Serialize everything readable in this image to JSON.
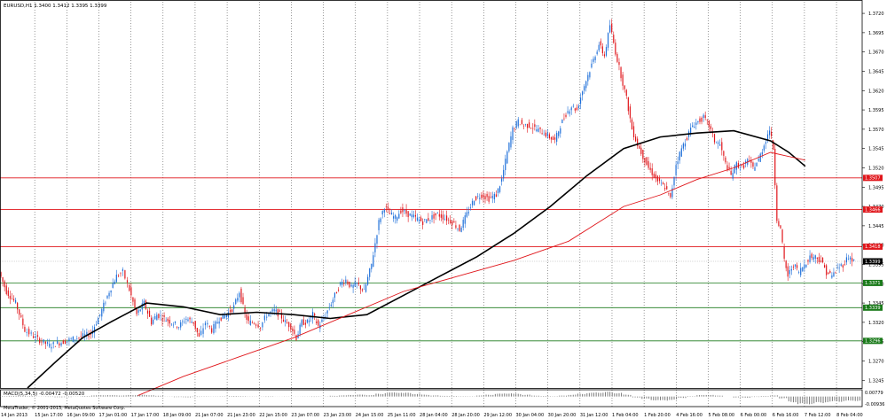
{
  "window": {
    "title": "EURUSD,H1  1.3400  1.3412  1.3395  1.3399"
  },
  "colors": {
    "background": "#ffffff",
    "bull_candle": "#1e6fd9",
    "bear_candle": "#e0161b",
    "ma_fast": "#000000",
    "ma_slow": "#e0161b",
    "resistance": "#e0161b",
    "support": "#1a7a1a",
    "grid": "#555555"
  },
  "icons": {
    "chart_type": "candlestick-chart-icon"
  },
  "chart_data": [
    {
      "type": "candlestick",
      "title": "EURUSD,H1  1.3400  1.3412  1.3395  1.3399",
      "symbol": "EURUSD",
      "timeframe": "H1",
      "ohlc_readout": [
        1.34,
        1.3412,
        1.3395,
        1.3399
      ],
      "ylim": [
        1.3235,
        1.3735
      ],
      "y_ticks": [
        "1.3720",
        "1.3695",
        "1.3670",
        "1.3645",
        "1.3620",
        "1.3595",
        "1.3570",
        "1.3545",
        "1.3520",
        "1.3495",
        "1.3470",
        "1.3445",
        "1.3420",
        "1.3395",
        "1.3370",
        "1.3345",
        "1.3320",
        "1.3295",
        "1.3270",
        "1.3245"
      ],
      "x_ticks": [
        "14 Jan 2013",
        "15 Jan 17:00",
        "16 Jan 09:00",
        "17 Jan 01:00",
        "17 Jan 17:00",
        "18 Jan 09:00",
        "21 Jan 07:00",
        "21 Jan 23:00",
        "22 Jan 15:00",
        "23 Jan 07:00",
        "23 Jan 23:00",
        "24 Jan 15:00",
        "25 Jan 11:00",
        "28 Jan 04:00",
        "28 Jan 20:00",
        "29 Jan 12:00",
        "30 Jan 04:00",
        "30 Jan 20:00",
        "31 Jan 12:00",
        "1 Feb 04:00",
        "1 Feb 20:00",
        "4 Feb 16:00",
        "5 Feb 08:00",
        "6 Feb 00:00",
        "6 Feb 16:00",
        "7 Feb 12:00",
        "8 Feb 04:00"
      ],
      "price_path": [
        [
          0,
          1.3385
        ],
        [
          8,
          1.336
        ],
        [
          18,
          1.3345
        ],
        [
          28,
          1.331
        ],
        [
          40,
          1.33
        ],
        [
          55,
          1.329
        ],
        [
          70,
          1.3295
        ],
        [
          85,
          1.33
        ],
        [
          100,
          1.3305
        ],
        [
          110,
          1.333
        ],
        [
          120,
          1.336
        ],
        [
          128,
          1.338
        ],
        [
          135,
          1.3385
        ],
        [
          140,
          1.337
        ],
        [
          150,
          1.333
        ],
        [
          158,
          1.3345
        ],
        [
          166,
          1.332
        ],
        [
          172,
          1.333
        ],
        [
          180,
          1.3325
        ],
        [
          188,
          1.332
        ],
        [
          196,
          1.3315
        ],
        [
          204,
          1.3325
        ],
        [
          212,
          1.332
        ],
        [
          218,
          1.33
        ],
        [
          225,
          1.332
        ],
        [
          232,
          1.331
        ],
        [
          240,
          1.3325
        ],
        [
          248,
          1.333
        ],
        [
          256,
          1.334
        ],
        [
          262,
          1.336
        ],
        [
          268,
          1.333
        ],
        [
          272,
          1.332
        ],
        [
          278,
          1.332
        ],
        [
          285,
          1.3315
        ],
        [
          292,
          1.333
        ],
        [
          300,
          1.3335
        ],
        [
          306,
          1.333
        ],
        [
          312,
          1.332
        ],
        [
          318,
          1.3315
        ],
        [
          324,
          1.33
        ],
        [
          330,
          1.332
        ],
        [
          336,
          1.332
        ],
        [
          342,
          1.333
        ],
        [
          348,
          1.3315
        ],
        [
          354,
          1.3325
        ],
        [
          360,
          1.334
        ],
        [
          366,
          1.3355
        ],
        [
          372,
          1.337
        ],
        [
          378,
          1.3375
        ],
        [
          384,
          1.3365
        ],
        [
          390,
          1.337
        ],
        [
          398,
          1.336
        ],
        [
          406,
          1.3395
        ],
        [
          414,
          1.345
        ],
        [
          420,
          1.347
        ],
        [
          426,
          1.346
        ],
        [
          432,
          1.3455
        ],
        [
          438,
          1.3465
        ],
        [
          446,
          1.346
        ],
        [
          454,
          1.3455
        ],
        [
          462,
          1.345
        ],
        [
          470,
          1.3455
        ],
        [
          478,
          1.346
        ],
        [
          486,
          1.3455
        ],
        [
          494,
          1.345
        ],
        [
          502,
          1.344
        ],
        [
          510,
          1.346
        ],
        [
          518,
          1.348
        ],
        [
          526,
          1.3485
        ],
        [
          534,
          1.348
        ],
        [
          542,
          1.3485
        ],
        [
          548,
          1.3505
        ],
        [
          554,
          1.354
        ],
        [
          560,
          1.357
        ],
        [
          566,
          1.358
        ],
        [
          572,
          1.3575
        ],
        [
          578,
          1.3575
        ],
        [
          586,
          1.357
        ],
        [
          594,
          1.3565
        ],
        [
          600,
          1.356
        ],
        [
          606,
          1.3555
        ],
        [
          612,
          1.3575
        ],
        [
          618,
          1.359
        ],
        [
          624,
          1.36
        ],
        [
          630,
          1.3595
        ],
        [
          636,
          1.362
        ],
        [
          642,
          1.364
        ],
        [
          648,
          1.366
        ],
        [
          654,
          1.368
        ],
        [
          660,
          1.3665
        ],
        [
          666,
          1.3705
        ],
        [
          672,
          1.367
        ],
        [
          678,
          1.364
        ],
        [
          684,
          1.361
        ],
        [
          690,
          1.357
        ],
        [
          696,
          1.355
        ],
        [
          702,
          1.3535
        ],
        [
          708,
          1.352
        ],
        [
          714,
          1.351
        ],
        [
          720,
          1.35
        ],
        [
          726,
          1.3495
        ],
        [
          732,
          1.348
        ],
        [
          738,
          1.3525
        ],
        [
          744,
          1.3545
        ],
        [
          750,
          1.356
        ],
        [
          756,
          1.3575
        ],
        [
          762,
          1.358
        ],
        [
          768,
          1.3585
        ],
        [
          774,
          1.3575
        ],
        [
          780,
          1.3555
        ],
        [
          786,
          1.355
        ],
        [
          792,
          1.3525
        ],
        [
          798,
          1.351
        ],
        [
          804,
          1.3525
        ],
        [
          810,
          1.352
        ],
        [
          816,
          1.353
        ],
        [
          822,
          1.352
        ],
        [
          828,
          1.353
        ],
        [
          834,
          1.355
        ],
        [
          840,
          1.357
        ],
        [
          844,
          1.3545
        ],
        [
          848,
          1.3455
        ],
        [
          852,
          1.344
        ],
        [
          856,
          1.34
        ],
        [
          860,
          1.338
        ],
        [
          866,
          1.3395
        ],
        [
          872,
          1.3385
        ],
        [
          878,
          1.3395
        ],
        [
          884,
          1.3405
        ],
        [
          890,
          1.3405
        ],
        [
          896,
          1.34
        ],
        [
          902,
          1.3385
        ],
        [
          908,
          1.338
        ],
        [
          914,
          1.339
        ],
        [
          920,
          1.3395
        ],
        [
          926,
          1.3405
        ],
        [
          932,
          1.3399
        ]
      ],
      "series": [
        {
          "type": "line",
          "style": "moving average",
          "color": "#000000",
          "points": [
            [
              30,
              1.3235
            ],
            [
              60,
              1.3268
            ],
            [
              90,
              1.33
            ],
            [
              120,
              1.332
            ],
            [
              160,
              1.3345
            ],
            [
              200,
              1.334
            ],
            [
              240,
              1.333
            ],
            [
              280,
              1.3333
            ],
            [
              320,
              1.333
            ],
            [
              360,
              1.3325
            ],
            [
              400,
              1.333
            ],
            [
              440,
              1.3355
            ],
            [
              480,
              1.338
            ],
            [
              520,
              1.3405
            ],
            [
              560,
              1.3435
            ],
            [
              600,
              1.347
            ],
            [
              640,
              1.351
            ],
            [
              680,
              1.3545
            ],
            [
              720,
              1.356
            ],
            [
              760,
              1.3565
            ],
            [
              800,
              1.3568
            ],
            [
              840,
              1.3555
            ],
            [
              860,
              1.354
            ],
            [
              878,
              1.3522
            ]
          ]
        },
        {
          "type": "line",
          "style": "moving average",
          "color": "#e0161b",
          "points": [
            [
              150,
              1.3225
            ],
            [
              200,
              1.325
            ],
            [
              260,
              1.3275
            ],
            [
              320,
              1.33
            ],
            [
              380,
              1.333
            ],
            [
              440,
              1.336
            ],
            [
              500,
              1.338
            ],
            [
              560,
              1.34
            ],
            [
              620,
              1.3425
            ],
            [
              680,
              1.347
            ],
            [
              720,
              1.3485
            ],
            [
              760,
              1.3505
            ],
            [
              800,
              1.352
            ],
            [
              840,
              1.354
            ],
            [
              878,
              1.353
            ]
          ]
        }
      ],
      "horizontal_levels": [
        {
          "price": 1.3507,
          "label": "1.3507",
          "color": "#e0161b"
        },
        {
          "price": 1.3466,
          "label": "1.3466",
          "color": "#e0161b"
        },
        {
          "price": 1.3418,
          "label": "1.3418",
          "color": "#e0161b"
        },
        {
          "price": 1.3399,
          "label": "1.3399",
          "color": "#000000"
        },
        {
          "price": 1.3371,
          "label": "1.3371",
          "color": "#1a7a1a"
        },
        {
          "price": 1.3339,
          "label": "1.3339",
          "color": "#1a7a1a"
        },
        {
          "price": 1.3296,
          "label": "1.3296",
          "color": "#1a7a1a"
        }
      ],
      "grid": true
    },
    {
      "type": "histogram",
      "title": "MACD(5,34,5) -0.00472 -0.00520",
      "ylim": [
        -0.0104,
        0.007
      ],
      "y_ticks": [
        "0.00779",
        "-0.00936"
      ],
      "histogram": [
        [
          0,
          0.0005
        ],
        [
          10,
          0.0008
        ],
        [
          20,
          0.001
        ],
        [
          30,
          0.0006
        ],
        [
          40,
          0.0002
        ],
        [
          50,
          -0.0004
        ],
        [
          60,
          -0.0008
        ],
        [
          70,
          -0.0006
        ],
        [
          80,
          -0.0002
        ],
        [
          90,
          0.0006
        ],
        [
          100,
          0.0012
        ],
        [
          110,
          0.0015
        ],
        [
          120,
          0.0014
        ],
        [
          130,
          0.0012
        ],
        [
          140,
          0.0016
        ],
        [
          150,
          0.0018
        ],
        [
          160,
          0.0015
        ],
        [
          170,
          0.0008
        ],
        [
          180,
          0.0002
        ],
        [
          190,
          -0.0006
        ],
        [
          200,
          -0.0008
        ],
        [
          210,
          -0.0005
        ],
        [
          220,
          -0.0003
        ],
        [
          230,
          -0.0002
        ],
        [
          240,
          0.0003
        ],
        [
          250,
          0.0006
        ],
        [
          260,
          0.0005
        ],
        [
          270,
          0.0002
        ],
        [
          280,
          -0.0002
        ],
        [
          290,
          -0.0004
        ],
        [
          300,
          -0.0001
        ],
        [
          310,
          0.0002
        ],
        [
          320,
          0.0001
        ],
        [
          330,
          -0.0002
        ],
        [
          340,
          -0.0004
        ],
        [
          350,
          0.0002
        ],
        [
          360,
          0.0008
        ],
        [
          370,
          0.0012
        ],
        [
          380,
          0.0018
        ],
        [
          390,
          0.002
        ],
        [
          400,
          0.0016
        ],
        [
          410,
          0.003
        ],
        [
          420,
          0.0042
        ],
        [
          430,
          0.0046
        ],
        [
          440,
          0.004
        ],
        [
          450,
          0.003
        ],
        [
          460,
          0.002
        ],
        [
          470,
          0.0012
        ],
        [
          480,
          0.0008
        ],
        [
          490,
          0.0006
        ],
        [
          500,
          0.0004
        ],
        [
          510,
          0.0003
        ],
        [
          520,
          0.0012
        ],
        [
          530,
          0.002
        ],
        [
          540,
          0.003
        ],
        [
          550,
          0.0036
        ],
        [
          560,
          0.003
        ],
        [
          570,
          0.002
        ],
        [
          580,
          0.001
        ],
        [
          590,
          0.0006
        ],
        [
          600,
          0.0004
        ],
        [
          610,
          0.001
        ],
        [
          620,
          0.002
        ],
        [
          630,
          0.003
        ],
        [
          640,
          0.004
        ],
        [
          650,
          0.0046
        ],
        [
          660,
          0.005
        ],
        [
          670,
          0.004
        ],
        [
          680,
          0.002
        ],
        [
          690,
          -0.001
        ],
        [
          700,
          -0.0025
        ],
        [
          710,
          -0.004
        ],
        [
          720,
          -0.0045
        ],
        [
          730,
          -0.0035
        ],
        [
          740,
          -0.0015
        ],
        [
          750,
          0.0005
        ],
        [
          760,
          0.0015
        ],
        [
          770,
          0.0018
        ],
        [
          780,
          0.001
        ],
        [
          790,
          0.0
        ],
        [
          800,
          -0.001
        ],
        [
          810,
          -0.0012
        ],
        [
          820,
          -0.0005
        ],
        [
          830,
          0.0006
        ],
        [
          840,
          0.0012
        ],
        [
          850,
          -0.002
        ],
        [
          860,
          -0.006
        ],
        [
          870,
          -0.0085
        ],
        [
          880,
          -0.008
        ],
        [
          890,
          -0.007
        ],
        [
          900,
          -0.006
        ],
        [
          910,
          -0.0055
        ],
        [
          920,
          -0.005
        ],
        [
          930,
          -0.0047
        ]
      ],
      "grid": true
    }
  ],
  "footer": {
    "copyright": "MetaTrader, © 2001-2013, MetaQuotes Software Corp."
  }
}
